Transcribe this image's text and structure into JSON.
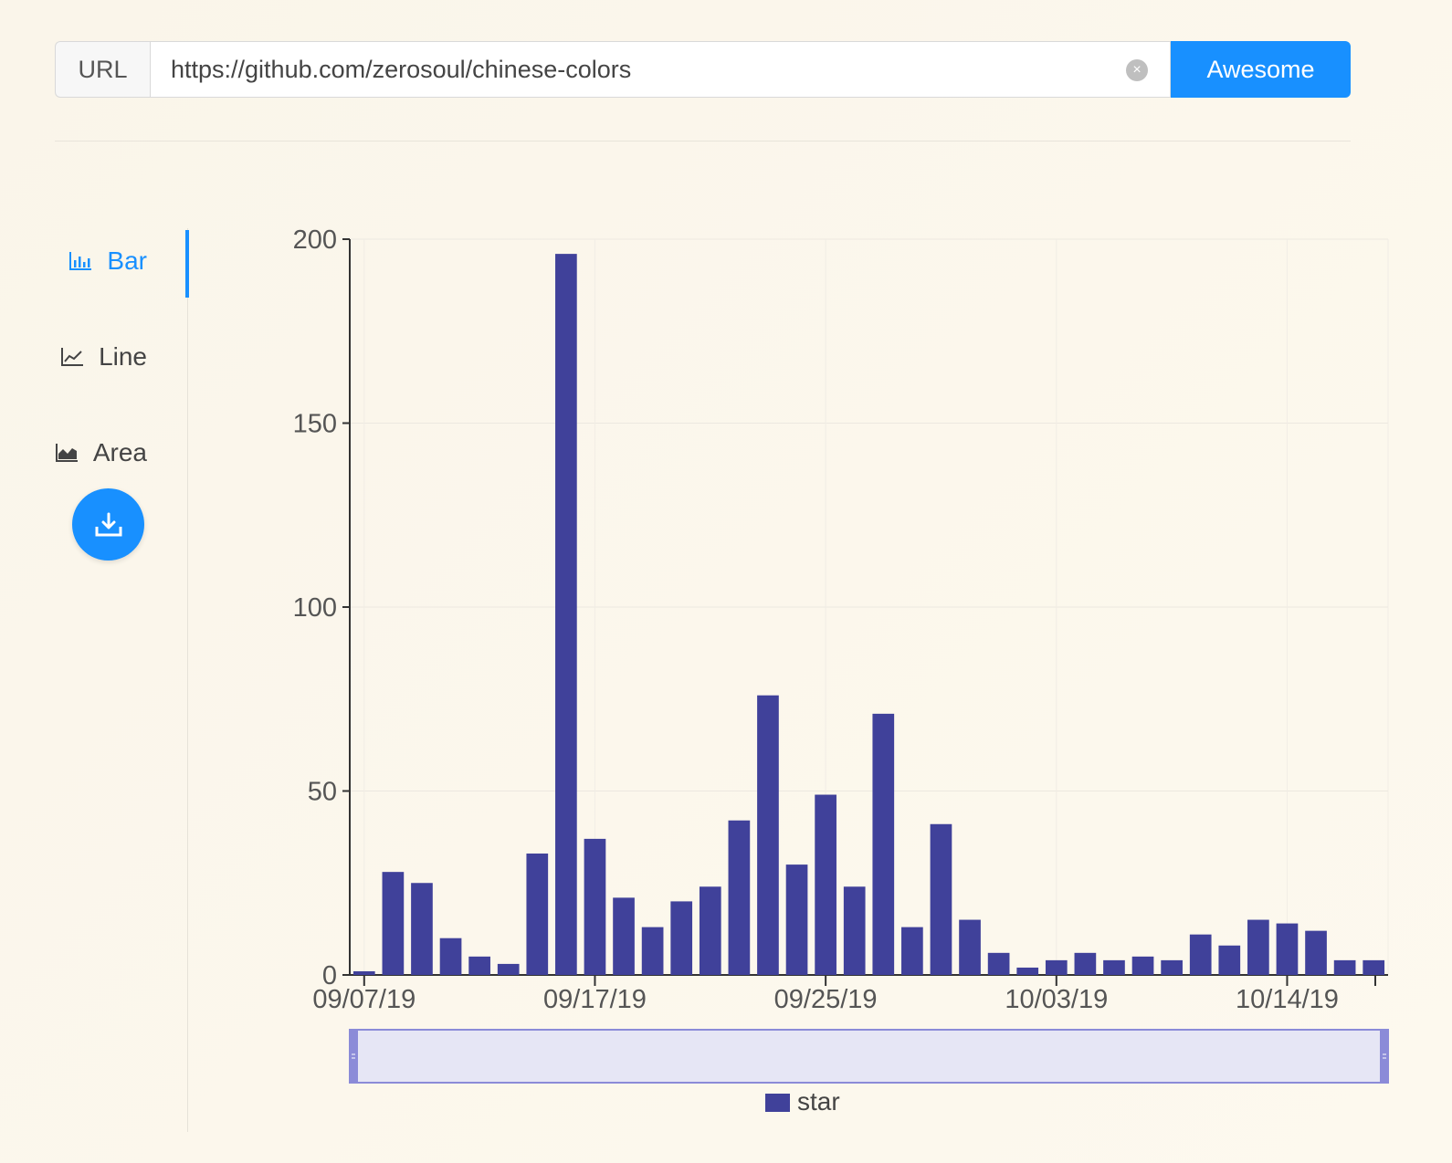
{
  "url_bar": {
    "prefix_label": "URL",
    "input_value": "https://github.com/zerosoul/chinese-colors",
    "submit_label": "Awesome"
  },
  "side_menu": {
    "items": [
      {
        "label": "Bar",
        "icon": "bar-chart-icon",
        "active": true
      },
      {
        "label": "Line",
        "icon": "line-chart-icon",
        "active": false
      },
      {
        "label": "Area",
        "icon": "area-chart-icon",
        "active": false
      }
    ],
    "download_icon": "download-icon"
  },
  "colors": {
    "accent": "#1890ff",
    "bar": "#40419a",
    "zoom_fill": "#e6e6f5",
    "zoom_border": "#8b8bd8"
  },
  "chart_data": {
    "type": "bar",
    "series": [
      {
        "name": "star",
        "values": [
          1,
          28,
          25,
          10,
          5,
          3,
          33,
          196,
          37,
          21,
          13,
          20,
          24,
          42,
          76,
          30,
          49,
          24,
          71,
          13,
          41,
          15,
          6,
          2,
          4,
          6,
          4,
          5,
          4,
          11,
          8,
          15,
          14,
          12,
          4,
          4
        ]
      }
    ],
    "x_tick_labels": [
      "09/07/19",
      "09/17/19",
      "09/25/19",
      "10/03/19",
      "10/14/19"
    ],
    "y_ticks": [
      0,
      50,
      100,
      150,
      200
    ],
    "ylim": [
      0,
      200
    ],
    "legend": [
      "star"
    ],
    "title": "",
    "xlabel": "",
    "ylabel": ""
  }
}
